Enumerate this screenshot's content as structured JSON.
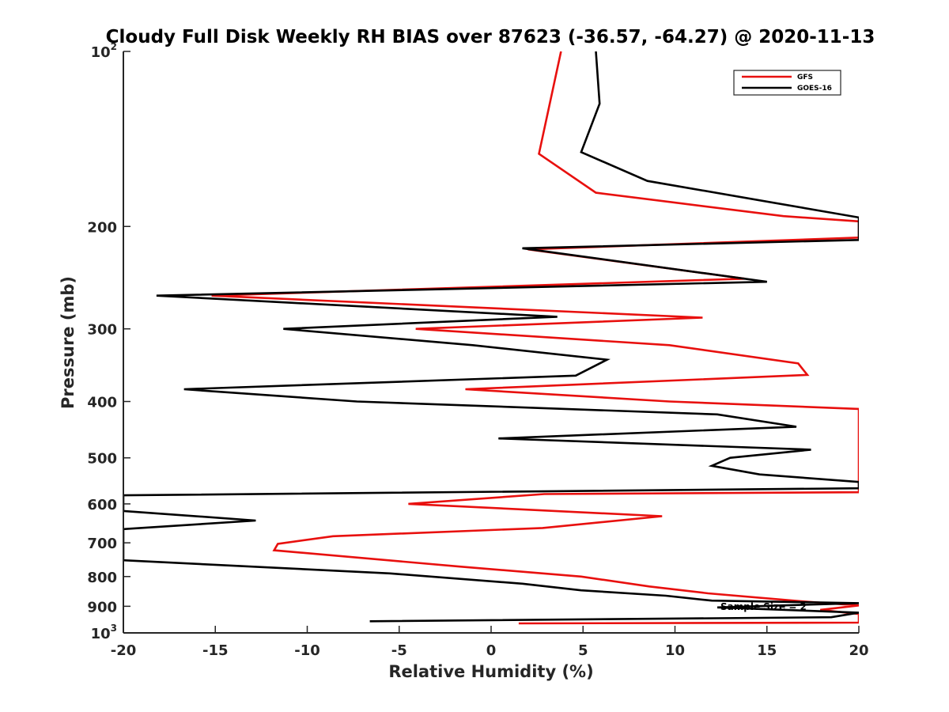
{
  "chart_data": {
    "type": "line",
    "title": "Cloudy Full Disk Weekly RH BIAS over 87623 (-36.57, -64.27) @ 2020-11-13",
    "xlabel": "Relative Humidity (%)",
    "ylabel": "Pressure (mb)",
    "xlim": [
      -20,
      20
    ],
    "ylim": [
      100,
      1000
    ],
    "yscale": "log",
    "y_reversed": true,
    "grid": false,
    "x_ticks": [
      -20,
      -15,
      -10,
      -5,
      0,
      5,
      10,
      15,
      20
    ],
    "x_tick_labels": [
      "-20",
      "-15",
      "-10",
      "-5",
      "0",
      "5",
      "10",
      "15",
      "20"
    ],
    "y_ticks": [
      100,
      200,
      300,
      400,
      500,
      600,
      700,
      800,
      900,
      1000
    ],
    "y_tick_labels": [
      {
        "base": "10",
        "exp": "2"
      },
      {
        "base": "200",
        "exp": ""
      },
      {
        "base": "300",
        "exp": ""
      },
      {
        "base": "400",
        "exp": ""
      },
      {
        "base": "500",
        "exp": ""
      },
      {
        "base": "600",
        "exp": ""
      },
      {
        "base": "700",
        "exp": ""
      },
      {
        "base": "800",
        "exp": ""
      },
      {
        "base": "900",
        "exp": ""
      },
      {
        "base": "10",
        "exp": "3"
      }
    ],
    "legend_position": "top-right",
    "annotation": "Sample Size = 2",
    "series": [
      {
        "name": "GFS",
        "color": "#e8100e",
        "points": [
          [
            3.8,
            100
          ],
          [
            2.6,
            150
          ],
          [
            5.7,
            175
          ],
          [
            15.9,
            192
          ],
          [
            20.0,
            196
          ],
          [
            20.0,
            209
          ],
          [
            2.0,
            219
          ],
          [
            13.8,
            246
          ],
          [
            -15.2,
            263
          ],
          [
            11.5,
            287
          ],
          [
            -4.1,
            300
          ],
          [
            9.7,
            320
          ],
          [
            16.7,
            344
          ],
          [
            17.2,
            360
          ],
          [
            -1.4,
            381
          ],
          [
            9.7,
            400
          ],
          [
            20.0,
            412
          ],
          [
            20.0,
            573
          ],
          [
            2.9,
            577
          ],
          [
            -4.5,
            600
          ],
          [
            9.3,
            630
          ],
          [
            2.8,
            660
          ],
          [
            -8.6,
            682
          ],
          [
            -11.6,
            703
          ],
          [
            -11.8,
            721
          ],
          [
            -1.7,
            769
          ],
          [
            4.9,
            800
          ],
          [
            8.6,
            832
          ],
          [
            11.8,
            855
          ],
          [
            17.0,
            883
          ],
          [
            20.0,
            897
          ],
          [
            17.9,
            913
          ],
          [
            20.0,
            928
          ],
          [
            20.0,
            960
          ],
          [
            1.5,
            963
          ]
        ]
      },
      {
        "name": "GOES-16",
        "color": "#000000",
        "points": [
          [
            5.7,
            100
          ],
          [
            5.9,
            123
          ],
          [
            4.9,
            149
          ],
          [
            8.5,
            167
          ],
          [
            20.0,
            193
          ],
          [
            20.0,
            211
          ],
          [
            1.7,
            218
          ],
          [
            15.0,
            249
          ],
          [
            -18.2,
            263
          ],
          [
            3.6,
            286
          ],
          [
            -11.3,
            300
          ],
          [
            -1.0,
            320
          ],
          [
            6.3,
            339
          ],
          [
            4.6,
            361
          ],
          [
            -16.7,
            381
          ],
          [
            -7.3,
            400
          ],
          [
            12.3,
            421
          ],
          [
            16.6,
            442
          ],
          [
            0.4,
            463
          ],
          [
            17.4,
            484
          ],
          [
            13.0,
            500
          ],
          [
            12.0,
            516
          ],
          [
            14.6,
            534
          ],
          [
            20.0,
            550
          ],
          [
            20.0,
            564
          ],
          [
            -20.0,
            580
          ],
          [
            -20.0,
            617
          ],
          [
            -12.8,
            641
          ],
          [
            -20.0,
            663
          ],
          [
            -20.0,
            750
          ],
          [
            -5.5,
            790
          ],
          [
            1.7,
            823
          ],
          [
            4.9,
            845
          ],
          [
            9.5,
            863
          ],
          [
            12.0,
            880
          ],
          [
            20.0,
            889
          ],
          [
            12.3,
            904
          ],
          [
            20.0,
            923
          ],
          [
            18.5,
            940
          ],
          [
            -6.6,
            955
          ]
        ]
      }
    ]
  }
}
